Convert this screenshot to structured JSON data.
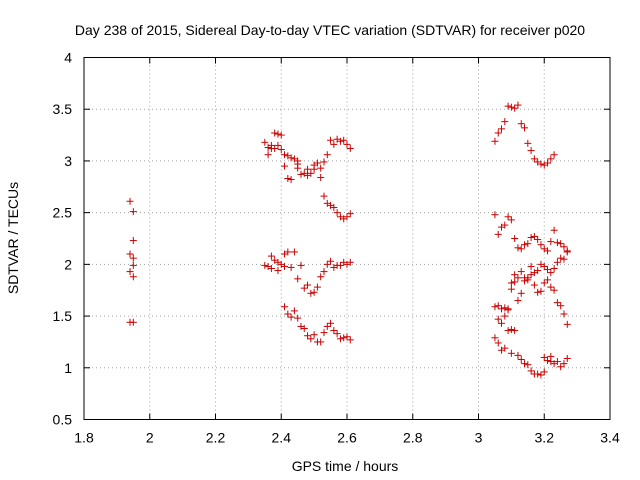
{
  "chart_data": {
    "type": "scatter",
    "title": "Day 238 of 2015, Sidereal Day-to-day VTEC variation (SDTVAR) for receiver p020",
    "xlabel": "GPS time / hours",
    "ylabel": "SDTVAR / TECUs",
    "xlim": [
      1.8,
      3.4
    ],
    "ylim": [
      0.5,
      4
    ],
    "xticks": [
      "1.8",
      "2",
      "2.2",
      "2.4",
      "2.6",
      "2.8",
      "3",
      "3.2",
      "3.4"
    ],
    "yticks": [
      "0.5",
      "1",
      "1.5",
      "2",
      "2.5",
      "3",
      "3.5",
      "4"
    ],
    "grid": true,
    "marker": "+",
    "color": "#cc0000",
    "series": [
      {
        "name": "SDTVAR",
        "points": [
          [
            1.94,
            2.61
          ],
          [
            1.95,
            2.51
          ],
          [
            1.95,
            2.23
          ],
          [
            1.94,
            2.1
          ],
          [
            1.95,
            2.06
          ],
          [
            1.95,
            1.99
          ],
          [
            1.94,
            1.93
          ],
          [
            1.95,
            1.88
          ],
          [
            1.94,
            1.44
          ],
          [
            1.95,
            1.44
          ],
          [
            2.35,
            3.18
          ],
          [
            2.36,
            3.13
          ],
          [
            2.36,
            3.06
          ],
          [
            2.37,
            3.12
          ],
          [
            2.37,
            3.15
          ],
          [
            2.38,
            3.27
          ],
          [
            2.38,
            3.12
          ],
          [
            2.39,
            3.26
          ],
          [
            2.39,
            3.15
          ],
          [
            2.4,
            3.11
          ],
          [
            2.4,
            3.25
          ],
          [
            2.41,
            3.06
          ],
          [
            2.42,
            3.05
          ],
          [
            2.43,
            3.03
          ],
          [
            2.44,
            3.02
          ],
          [
            2.45,
            3.0
          ],
          [
            2.45,
            2.93
          ],
          [
            2.46,
            2.87
          ],
          [
            2.47,
            2.88
          ],
          [
            2.48,
            2.92
          ],
          [
            2.48,
            2.86
          ],
          [
            2.49,
            2.88
          ],
          [
            2.5,
            2.92
          ],
          [
            2.5,
            2.96
          ],
          [
            2.51,
            2.98
          ],
          [
            2.52,
            2.93
          ],
          [
            2.52,
            2.84
          ],
          [
            2.53,
            2.99
          ],
          [
            2.54,
            3.06
          ],
          [
            2.55,
            3.2
          ],
          [
            2.56,
            3.16
          ],
          [
            2.57,
            3.21
          ],
          [
            2.58,
            3.19
          ],
          [
            2.59,
            3.2
          ],
          [
            2.6,
            3.16
          ],
          [
            2.61,
            3.12
          ],
          [
            2.41,
            2.95
          ],
          [
            2.42,
            2.83
          ],
          [
            2.43,
            2.82
          ],
          [
            2.45,
            2.97
          ],
          [
            2.53,
            2.66
          ],
          [
            2.54,
            2.59
          ],
          [
            2.55,
            2.57
          ],
          [
            2.56,
            2.55
          ],
          [
            2.57,
            2.5
          ],
          [
            2.58,
            2.46
          ],
          [
            2.59,
            2.44
          ],
          [
            2.6,
            2.46
          ],
          [
            2.61,
            2.49
          ],
          [
            2.35,
            1.99
          ],
          [
            2.36,
            1.98
          ],
          [
            2.37,
            2.08
          ],
          [
            2.37,
            1.96
          ],
          [
            2.38,
            2.04
          ],
          [
            2.39,
            1.94
          ],
          [
            2.39,
            2.02
          ],
          [
            2.4,
            2.0
          ],
          [
            2.41,
            2.1
          ],
          [
            2.41,
            1.98
          ],
          [
            2.42,
            2.12
          ],
          [
            2.43,
            1.97
          ],
          [
            2.44,
            2.12
          ],
          [
            2.45,
            1.86
          ],
          [
            2.46,
            1.99
          ],
          [
            2.47,
            1.77
          ],
          [
            2.48,
            1.8
          ],
          [
            2.49,
            1.72
          ],
          [
            2.5,
            1.73
          ],
          [
            2.51,
            1.78
          ],
          [
            2.52,
            1.88
          ],
          [
            2.53,
            1.93
          ],
          [
            2.54,
            2.0
          ],
          [
            2.55,
            2.03
          ],
          [
            2.56,
            1.97
          ],
          [
            2.57,
            1.99
          ],
          [
            2.58,
            1.99
          ],
          [
            2.59,
            2.02
          ],
          [
            2.6,
            2.0
          ],
          [
            2.61,
            2.02
          ],
          [
            2.41,
            1.59
          ],
          [
            2.42,
            1.52
          ],
          [
            2.43,
            1.49
          ],
          [
            2.44,
            1.55
          ],
          [
            2.45,
            1.48
          ],
          [
            2.46,
            1.4
          ],
          [
            2.47,
            1.38
          ],
          [
            2.48,
            1.31
          ],
          [
            2.49,
            1.28
          ],
          [
            2.5,
            1.32
          ],
          [
            2.51,
            1.25
          ],
          [
            2.52,
            1.25
          ],
          [
            2.53,
            1.34
          ],
          [
            2.54,
            1.4
          ],
          [
            2.55,
            1.43
          ],
          [
            2.56,
            1.36
          ],
          [
            2.57,
            1.33
          ],
          [
            2.58,
            1.28
          ],
          [
            2.59,
            1.29
          ],
          [
            2.6,
            1.3
          ],
          [
            2.61,
            1.27
          ],
          [
            3.05,
            3.19
          ],
          [
            3.06,
            3.27
          ],
          [
            3.07,
            3.31
          ],
          [
            3.08,
            3.38
          ],
          [
            3.09,
            3.53
          ],
          [
            3.1,
            3.52
          ],
          [
            3.11,
            3.51
          ],
          [
            3.12,
            3.54
          ],
          [
            3.13,
            3.36
          ],
          [
            3.14,
            3.32
          ],
          [
            3.15,
            3.17
          ],
          [
            3.16,
            3.1
          ],
          [
            3.17,
            3.02
          ],
          [
            3.18,
            2.99
          ],
          [
            3.19,
            2.97
          ],
          [
            3.2,
            2.96
          ],
          [
            3.21,
            2.98
          ],
          [
            3.22,
            3.02
          ],
          [
            3.23,
            3.06
          ],
          [
            3.05,
            2.48
          ],
          [
            3.06,
            2.29
          ],
          [
            3.07,
            2.36
          ],
          [
            3.08,
            2.38
          ],
          [
            3.09,
            2.46
          ],
          [
            3.1,
            2.43
          ],
          [
            3.11,
            2.25
          ],
          [
            3.12,
            2.16
          ],
          [
            3.13,
            2.15
          ],
          [
            3.14,
            2.19
          ],
          [
            3.15,
            2.2
          ],
          [
            3.16,
            2.26
          ],
          [
            3.17,
            2.27
          ],
          [
            3.18,
            2.24
          ],
          [
            3.19,
            2.19
          ],
          [
            3.2,
            2.15
          ],
          [
            3.21,
            2.13
          ],
          [
            3.22,
            2.22
          ],
          [
            3.23,
            2.33
          ],
          [
            3.24,
            2.21
          ],
          [
            3.25,
            2.2
          ],
          [
            3.26,
            2.17
          ],
          [
            3.27,
            2.13
          ],
          [
            3.05,
            1.59
          ],
          [
            3.06,
            1.6
          ],
          [
            3.07,
            1.57
          ],
          [
            3.08,
            1.58
          ],
          [
            3.09,
            1.57
          ],
          [
            3.1,
            1.82
          ],
          [
            3.11,
            1.9
          ],
          [
            3.12,
            1.87
          ],
          [
            3.13,
            1.93
          ],
          [
            3.14,
            1.84
          ],
          [
            3.15,
            1.85
          ],
          [
            3.16,
            1.98
          ],
          [
            3.17,
            1.92
          ],
          [
            3.18,
            1.94
          ],
          [
            3.19,
            2.0
          ],
          [
            3.2,
            1.98
          ],
          [
            3.21,
            1.95
          ],
          [
            3.22,
            1.92
          ],
          [
            3.23,
            1.96
          ],
          [
            3.24,
            2.02
          ],
          [
            3.25,
            2.06
          ],
          [
            3.26,
            2.05
          ],
          [
            3.27,
            2.12
          ],
          [
            3.06,
            1.47
          ],
          [
            3.07,
            1.43
          ],
          [
            3.08,
            1.5
          ],
          [
            3.09,
            1.56
          ],
          [
            3.1,
            1.76
          ],
          [
            3.11,
            1.83
          ],
          [
            3.12,
            1.65
          ],
          [
            3.13,
            1.72
          ],
          [
            3.14,
            1.87
          ],
          [
            3.15,
            1.87
          ],
          [
            3.16,
            1.9
          ],
          [
            3.17,
            1.8
          ],
          [
            3.18,
            1.73
          ],
          [
            3.19,
            1.74
          ],
          [
            3.2,
            1.82
          ],
          [
            3.21,
            1.85
          ],
          [
            3.22,
            1.78
          ],
          [
            3.23,
            1.75
          ],
          [
            3.24,
            1.63
          ],
          [
            3.25,
            1.6
          ],
          [
            3.26,
            1.52
          ],
          [
            3.27,
            1.42
          ],
          [
            3.05,
            1.29
          ],
          [
            3.06,
            1.24
          ],
          [
            3.07,
            1.17
          ],
          [
            3.08,
            1.19
          ],
          [
            3.09,
            1.36
          ],
          [
            3.1,
            1.37
          ],
          [
            3.11,
            1.36
          ],
          [
            3.12,
            1.12
          ],
          [
            3.13,
            1.08
          ],
          [
            3.14,
            1.04
          ],
          [
            3.15,
            1.03
          ],
          [
            3.16,
            0.97
          ],
          [
            3.17,
            0.94
          ],
          [
            3.18,
            0.94
          ],
          [
            3.19,
            0.93
          ],
          [
            3.2,
            0.96
          ],
          [
            3.21,
            1.07
          ],
          [
            3.22,
            1.06
          ],
          [
            3.23,
            1.04
          ],
          [
            3.24,
            1.06
          ],
          [
            3.25,
            1.01
          ],
          [
            3.26,
            1.04
          ],
          [
            3.27,
            1.09
          ],
          [
            3.1,
            1.14
          ],
          [
            3.2,
            1.1
          ],
          [
            3.22,
            1.11
          ]
        ]
      }
    ]
  }
}
